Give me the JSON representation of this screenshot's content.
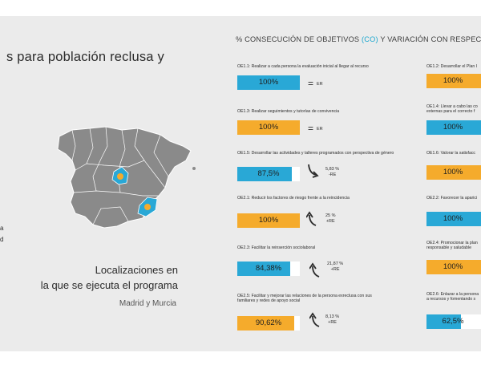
{
  "heading": "s para población reclusa y",
  "side_notes": [
    "a",
    "d"
  ],
  "map": {
    "regions_highlighted": [
      "Madrid",
      "Murcia"
    ],
    "highlight_color": "#29a8d6",
    "marker_color": "#f5ab2c",
    "land_color": "#8a8a8a"
  },
  "location": {
    "title_line1": "Localizaciones en",
    "title_line2": "la que se ejecuta el programa",
    "places": "Madrid y Murcia"
  },
  "section": {
    "title_prefix": "% CONSECUCIÓN DE OBJETIVOS ",
    "title_co": "(CO)",
    "title_suffix": " Y VARIACIÓN CON RESPECTO A LOS R"
  },
  "colors": {
    "blue": "#29a8d6",
    "orange": "#f5ab2c"
  },
  "left_goals": [
    {
      "label": "OE1.1: Realizar a cada persona la evaluación inicial al llegar al recurso",
      "value_text": "100%",
      "pct": 100,
      "color": "blue",
      "variation_type": "equal",
      "variation_text": "ER"
    },
    {
      "label": "OE1.3: Realizar seguimientos y tutorías de convivencia",
      "value_text": "100%",
      "pct": 100,
      "color": "orange",
      "variation_type": "equal",
      "variation_text": "ER"
    },
    {
      "label": "OE1.5: Desarrollar las actividades y talleres programados con perspectiva de género",
      "value_text": "87,5%",
      "pct": 87.5,
      "color": "blue",
      "variation_type": "down",
      "variation_text": "5,83 %",
      "variation_sub": "-RE"
    },
    {
      "label": "OE2.1: Reducir los factores de riesgo frente a la reincidencia",
      "value_text": "100%",
      "pct": 100,
      "color": "orange",
      "variation_type": "up",
      "variation_text": "25 %",
      "variation_sub": "+RE"
    },
    {
      "label": "OE2.3: Facilitar la reinserción sociolaboral",
      "value_text": "84,38%",
      "pct": 84.38,
      "color": "blue",
      "variation_type": "up",
      "variation_text": "21,87 %",
      "variation_sub": "+RE"
    },
    {
      "label_line1": "OE2.5: Facilitar y mejorar las relaciones de la persona exreclusa con sus",
      "label_line2": "familiares y redes de apoyo social",
      "value_text": "90,62%",
      "pct": 90.62,
      "color": "orange",
      "variation_type": "up",
      "variation_text": "8,13 %",
      "variation_sub": "+RE"
    }
  ],
  "right_goals": [
    {
      "label_line1": "OE1.2: Desarrollar el Plan I",
      "label_line2": "",
      "value_text": "100%",
      "color": "orange"
    },
    {
      "label_line1": "OE1.4: Llevar a cabo las co",
      "label_line2": "externas para el correcto f",
      "value_text": "100%",
      "color": "blue"
    },
    {
      "label_line1": "OE1.6: Valorar la satisfacc",
      "label_line2": "",
      "value_text": "100%",
      "color": "orange"
    },
    {
      "label_line1": "OE2.2: Favorecer la aparici",
      "label_line2": "",
      "value_text": "100%",
      "color": "blue"
    },
    {
      "label_line1": "OE2.4: Promocionar la plan",
      "label_line2": "responsable y saludable",
      "value_text": "100%",
      "color": "orange"
    },
    {
      "label_line1": "OE2.6: Enlazar a la persona",
      "label_line2": "a recursos y fomentando s",
      "value_text": "62,5%",
      "color": "blue"
    }
  ]
}
